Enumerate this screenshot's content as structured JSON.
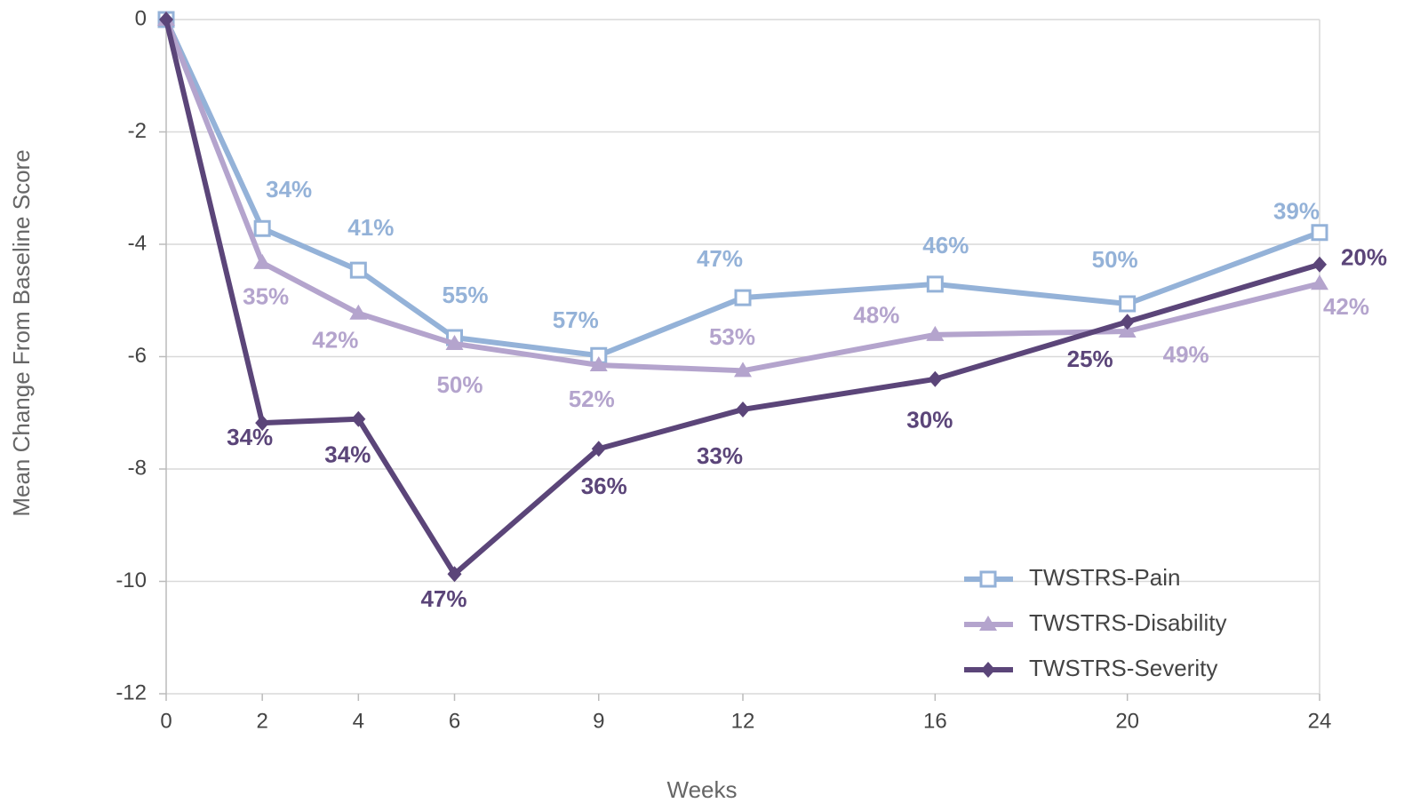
{
  "chart_data": {
    "type": "line",
    "x_label": "Weeks",
    "y_label": "Mean Change From Baseline Score",
    "x": [
      0,
      2,
      4,
      6,
      9,
      12,
      16,
      20,
      24
    ],
    "xlim": [
      0,
      24
    ],
    "xticks": [
      0,
      2,
      4,
      6,
      9,
      12,
      16,
      20,
      24
    ],
    "ylim": [
      -12,
      0
    ],
    "yticks": [
      0,
      -2,
      -4,
      -6,
      -8,
      -10,
      -12
    ],
    "grid": true,
    "legend": "lower right",
    "series": [
      {
        "name": "TWSTRS-Pain",
        "color": "#94b2d8",
        "marker": "square",
        "values": [
          0,
          -3.72,
          -4.46,
          -5.66,
          -5.98,
          -4.95,
          -4.71,
          -5.06,
          -3.79
        ],
        "annotations": [
          null,
          "34%",
          "41%",
          "55%",
          "57%",
          "47%",
          "46%",
          "50%",
          "39%"
        ]
      },
      {
        "name": "TWSTRS-Disability",
        "color": "#b4a4cd",
        "marker": "triangle",
        "values": [
          0,
          -4.33,
          -5.23,
          -5.77,
          -6.15,
          -6.25,
          -5.61,
          -5.55,
          -4.7
        ],
        "annotations": [
          null,
          "35%",
          "42%",
          "50%",
          "52%",
          "53%",
          "48%",
          "49%",
          "42%"
        ]
      },
      {
        "name": "TWSTRS-Severity",
        "color": "#5b4579",
        "marker": "diamond",
        "values": [
          0,
          -7.18,
          -7.11,
          -9.87,
          -7.64,
          -6.94,
          -6.4,
          -5.38,
          -4.36
        ],
        "annotations": [
          null,
          "34%",
          "34%",
          "47%",
          "36%",
          "33%",
          "30%",
          "25%",
          "20%"
        ]
      }
    ]
  }
}
